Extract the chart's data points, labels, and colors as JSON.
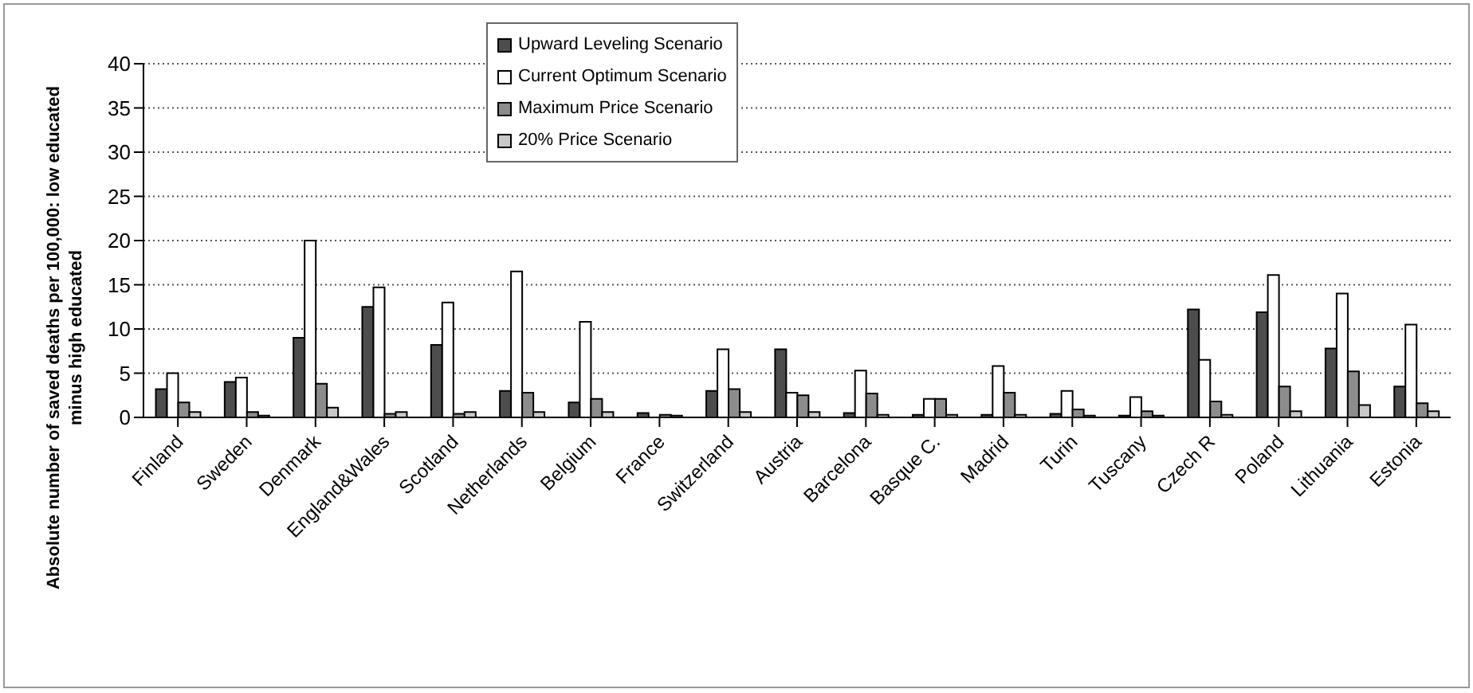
{
  "chart_data": {
    "type": "bar",
    "ylabel": "Absolute number of saved deaths per 100,000: low educated minus high educated",
    "categories": [
      "Finland",
      "Sweden",
      "Denmark",
      "England&Wales",
      "Scotland",
      "Netherlands",
      "Belgium",
      "France",
      "Switzerland",
      "Austria",
      "Barcelona",
      "Basque C.",
      "Madrid",
      "Turin",
      "Tuscany",
      "Czech R",
      "Poland",
      "Lithuania",
      "Estonia"
    ],
    "series": [
      {
        "name": "Upward Leveling Scenario",
        "color": "#4d4d4d",
        "values": [
          3.2,
          4,
          9,
          12.5,
          8.2,
          3,
          1.7,
          0.5,
          3,
          7.7,
          0.5,
          0.3,
          0.3,
          0.4,
          0.2,
          12.2,
          11.9,
          7.8,
          3.5
        ]
      },
      {
        "name": "Current Optimum Scenario",
        "color": "#ffffff",
        "values": [
          5,
          4.5,
          20,
          14.7,
          13,
          16.5,
          10.8,
          0,
          7.7,
          2.8,
          5.3,
          2.1,
          5.8,
          3,
          2.3,
          6.5,
          16.1,
          14,
          10.5
        ]
      },
      {
        "name": "Maximum Price Scenario",
        "color": "#8c8c8c",
        "values": [
          1.7,
          0.6,
          3.8,
          0.4,
          0.4,
          2.8,
          2.1,
          0.3,
          3.2,
          2.5,
          2.7,
          2.1,
          2.8,
          0.9,
          0.7,
          1.8,
          3.5,
          5.2,
          1.6
        ]
      },
      {
        "name": "20% Price Scenario",
        "color": "#c8c8c8",
        "values": [
          0.6,
          0.2,
          1.1,
          0.6,
          0.6,
          0.6,
          0.6,
          0.2,
          0.6,
          0.6,
          0.3,
          0.3,
          0.3,
          0.2,
          0.2,
          0.3,
          0.7,
          1.4,
          0.7
        ]
      }
    ],
    "ylim": [
      0,
      40
    ],
    "yticks": [
      0,
      5,
      10,
      15,
      20,
      25,
      30,
      35,
      40
    ],
    "grid": "y",
    "legend": "top"
  }
}
